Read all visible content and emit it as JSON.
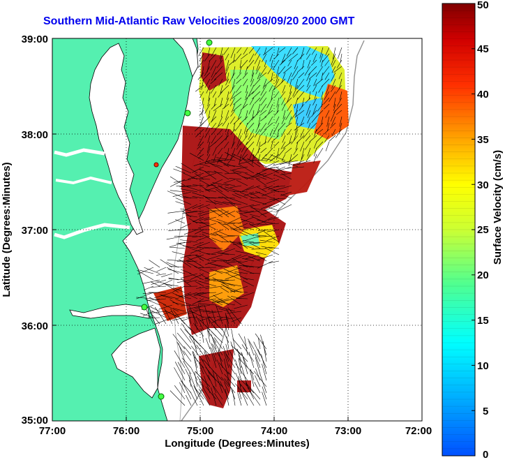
{
  "title": "Southern Mid-Atlantic Raw Velocities 2008/09/20 2000 GMT",
  "xlabel": "Longitude (Degrees:Minutes)",
  "ylabel": "Latitude (Degrees:Minutes)",
  "x_ticks": [
    "77:00",
    "76:00",
    "75:00",
    "74:00",
    "73:00",
    "72:00"
  ],
  "y_ticks": [
    "39:00",
    "38:00",
    "37:00",
    "36:00",
    "35:00"
  ],
  "colorbar": {
    "label": "Surface Velocity (cm/s)",
    "ticks": [
      "50",
      "45",
      "40",
      "35",
      "30",
      "25",
      "20",
      "15",
      "10",
      "5",
      "0"
    ],
    "range": [
      0,
      50
    ]
  },
  "colors": {
    "land": "#55f0b0",
    "title": "#0000ee",
    "grid": "#000000"
  },
  "map": {
    "lon_range": [
      -77,
      -72
    ],
    "lat_range": [
      35,
      39
    ],
    "grid": "dotted"
  }
}
